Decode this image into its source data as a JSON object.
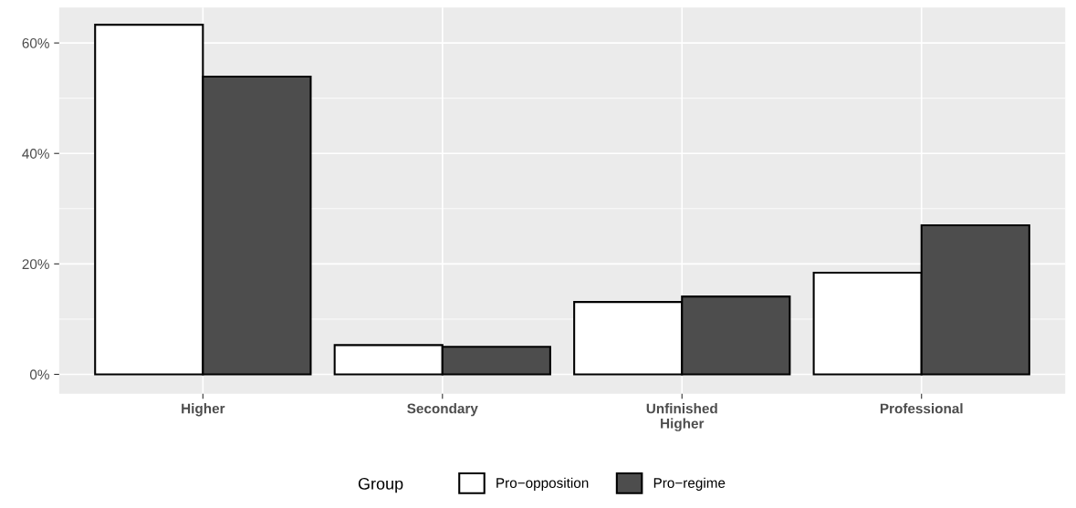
{
  "chart_data": {
    "type": "bar",
    "categories": [
      "Higher",
      "Secondary",
      "Unfinished\nHigher",
      "Professional"
    ],
    "series": [
      {
        "name": "Pro−opposition",
        "color": "#ffffff",
        "values": [
          63.3,
          5.3,
          13.1,
          18.4
        ]
      },
      {
        "name": "Pro−regime",
        "color": "#4d4d4d",
        "values": [
          53.9,
          5.0,
          14.1,
          27.0
        ]
      }
    ],
    "ylim": [
      -3.5,
      66.4
    ],
    "yticks": [
      {
        "value": 0,
        "label": "0%"
      },
      {
        "value": 20,
        "label": "20%"
      },
      {
        "value": 40,
        "label": "40%"
      },
      {
        "value": 60,
        "label": "60%"
      }
    ],
    "grid": true,
    "legend": "bottom",
    "legend_title": "Group"
  }
}
